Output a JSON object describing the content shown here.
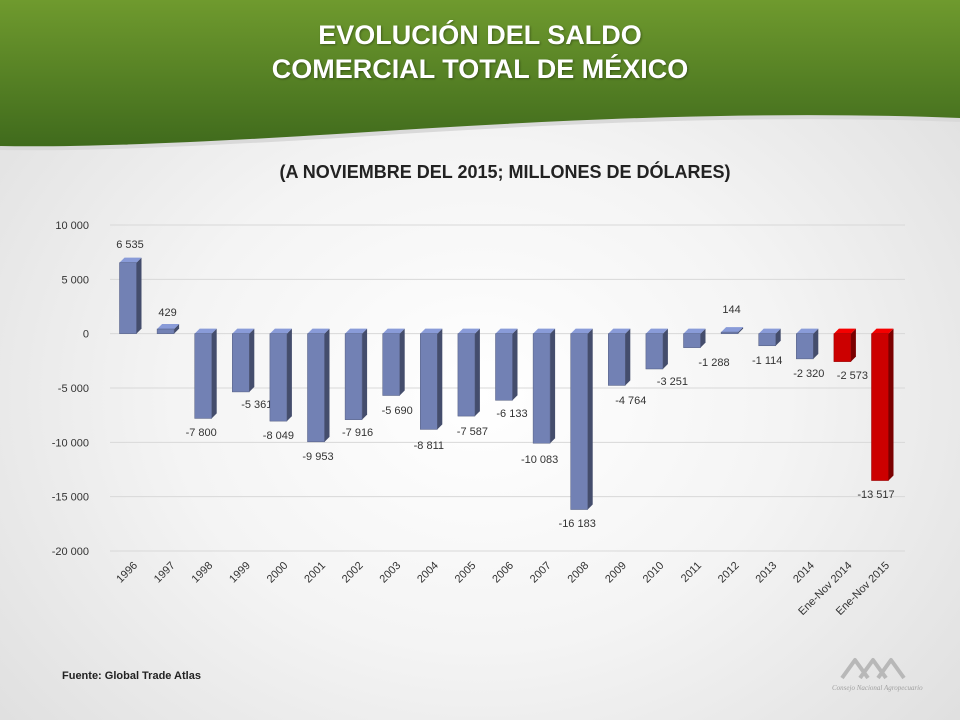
{
  "title_line1": "EVOLUCIÓN DEL SALDO",
  "title_line2": "COMERCIAL TOTAL DE MÉXICO",
  "subtitle": "(A NOVIEMBRE DEL 2015; MILLONES DE DÓLARES)",
  "source": "Fuente:  Global Trade Atlas",
  "logo_text": "Consejo Nacional Agropecuario",
  "colors": {
    "header_green": "#5f8a2a",
    "bar_blue": "#7281b4",
    "bar_red": "#cc0000"
  },
  "chart_data": {
    "type": "bar",
    "title": "",
    "xlabel": "",
    "ylabel": "",
    "ylim": [
      -20000,
      10000
    ],
    "yticks": [
      10000,
      5000,
      0,
      -5000,
      -10000,
      -15000,
      -20000
    ],
    "ytick_labels": [
      "10 000",
      "5 000",
      "0",
      "-5 000",
      "-10 000",
      "-15 000",
      "-20 000"
    ],
    "grid": true,
    "categories": [
      "1996",
      "1997",
      "1998",
      "1999",
      "2000",
      "2001",
      "2002",
      "2003",
      "2004",
      "2005",
      "2006",
      "2007",
      "2008",
      "2009",
      "2010",
      "2011",
      "2012",
      "2013",
      "2014",
      "Ene-Nov 2014",
      "Ene-Nov 2015"
    ],
    "values": [
      6535,
      429,
      -7800,
      -5361,
      -8049,
      -9953,
      -7916,
      -5690,
      -8811,
      -7587,
      -6133,
      -10083,
      -16183,
      -4764,
      -3251,
      -1288,
      144,
      -1114,
      -2320,
      -2573,
      -13517
    ],
    "value_labels": [
      "6 535",
      "429",
      "-7 800",
      "-5 361",
      "-8 049",
      "-9 953",
      "-7 916",
      "-5 690",
      "-8 811",
      "-7 587",
      "-6 133",
      "-10 083",
      "-16 183",
      "-4 764",
      "-3 251",
      "-1 288",
      "144",
      "-1 114",
      "-2 320",
      "-2 573",
      "-13 517"
    ],
    "bar_colors": [
      "blue",
      "blue",
      "blue",
      "blue",
      "blue",
      "blue",
      "blue",
      "blue",
      "blue",
      "blue",
      "blue",
      "blue",
      "blue",
      "blue",
      "blue",
      "blue",
      "blue",
      "blue",
      "blue",
      "red",
      "red"
    ]
  }
}
